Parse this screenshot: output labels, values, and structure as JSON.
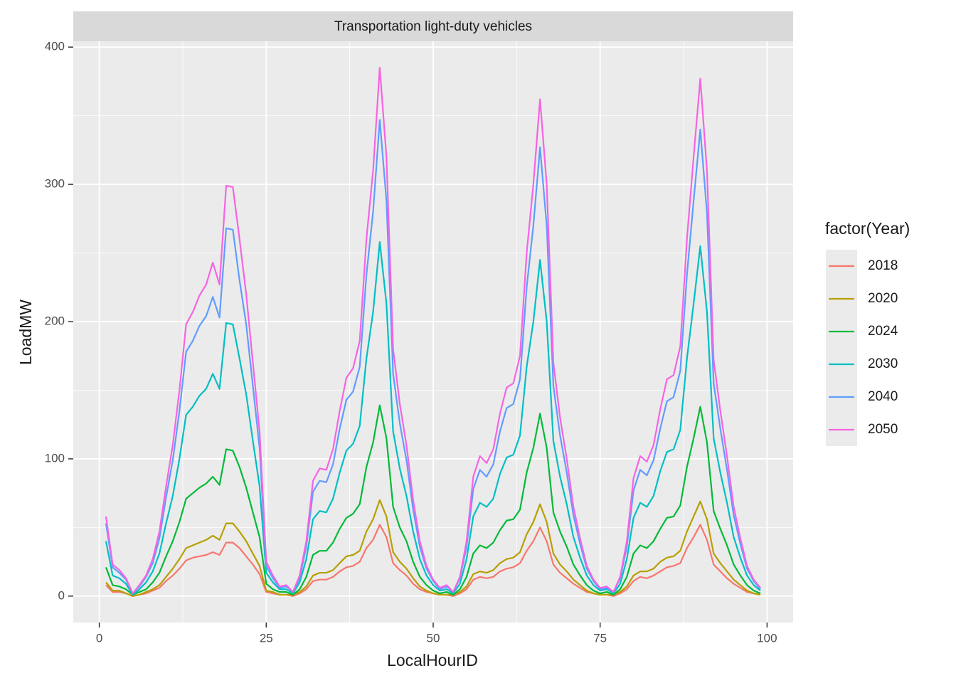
{
  "chart_data": {
    "type": "line",
    "facet_label": "Transportation light-duty vehicles",
    "x_label": "LocalHourID",
    "y_label": "LoadMW",
    "legend_title": "factor(Year)",
    "legend_position": "right",
    "grid": true,
    "xlim": [
      -3.9,
      103.9
    ],
    "ylim": [
      -19.25,
      404.25
    ],
    "xticks": [
      0,
      25,
      50,
      75,
      100
    ],
    "yticks": [
      0,
      100,
      200,
      300,
      400
    ],
    "x": [
      1,
      2,
      3,
      4,
      5,
      6,
      7,
      8,
      9,
      10,
      11,
      12,
      13,
      14,
      15,
      16,
      17,
      18,
      19,
      20,
      21,
      22,
      23,
      24,
      25,
      26,
      27,
      28,
      29,
      30,
      31,
      32,
      33,
      34,
      35,
      36,
      37,
      38,
      39,
      40,
      41,
      42,
      43,
      44,
      45,
      46,
      47,
      48,
      49,
      50,
      51,
      52,
      53,
      54,
      55,
      56,
      57,
      58,
      59,
      60,
      61,
      62,
      63,
      64,
      65,
      66,
      67,
      68,
      69,
      70,
      71,
      72,
      73,
      74,
      75,
      76,
      77,
      78,
      79,
      80,
      81,
      82,
      83,
      84,
      85,
      86,
      87,
      88,
      89,
      90,
      91,
      92,
      93,
      94,
      95,
      96,
      97,
      98,
      99
    ],
    "series": [
      {
        "name": "2018",
        "color": "#F8766D",
        "values": [
          8,
          3,
          3,
          2,
          0,
          1,
          2,
          4,
          6,
          11,
          15,
          20,
          26,
          28,
          29,
          30,
          32,
          30,
          39,
          39,
          35,
          29,
          23,
          16,
          3,
          2,
          1,
          1,
          0,
          2,
          5,
          11,
          12,
          12,
          14,
          18,
          21,
          22,
          25,
          35,
          41,
          52,
          43,
          24,
          19,
          15,
          9,
          5,
          3,
          2,
          1,
          1,
          0,
          2,
          5,
          12,
          14,
          13,
          14,
          18,
          20,
          21,
          24,
          33,
          40,
          50,
          40,
          23,
          17,
          13,
          9,
          6,
          3,
          2,
          1,
          1,
          0,
          2,
          5,
          11,
          14,
          13,
          15,
          18,
          21,
          22,
          24,
          35,
          43,
          52,
          41,
          23,
          18,
          13,
          9,
          6,
          3,
          2,
          1
        ]
      },
      {
        "name": "2020",
        "color": "#B79F00",
        "values": [
          10,
          4,
          4,
          2,
          0,
          1,
          3,
          5,
          8,
          14,
          20,
          27,
          35,
          37,
          39,
          41,
          44,
          41,
          53,
          53,
          47,
          40,
          31,
          22,
          4,
          3,
          1,
          1,
          1,
          3,
          7,
          15,
          17,
          17,
          19,
          24,
          29,
          30,
          33,
          47,
          56,
          70,
          58,
          32,
          25,
          20,
          13,
          7,
          4,
          2,
          1,
          1,
          1,
          3,
          7,
          16,
          18,
          17,
          19,
          24,
          27,
          28,
          32,
          45,
          54,
          67,
          54,
          31,
          23,
          18,
          12,
          8,
          4,
          2,
          1,
          1,
          1,
          3,
          7,
          15,
          18,
          18,
          20,
          25,
          28,
          29,
          33,
          47,
          58,
          69,
          56,
          31,
          24,
          18,
          12,
          8,
          4,
          2,
          1
        ]
      },
      {
        "name": "2024",
        "color": "#00BA38",
        "values": [
          21,
          8,
          7,
          5,
          1,
          3,
          5,
          10,
          17,
          29,
          40,
          54,
          71,
          75,
          79,
          82,
          87,
          81,
          107,
          106,
          94,
          79,
          61,
          43,
          9,
          5,
          3,
          3,
          1,
          5,
          14,
          30,
          33,
          33,
          39,
          49,
          57,
          60,
          67,
          94,
          112,
          139,
          115,
          65,
          50,
          40,
          25,
          14,
          8,
          4,
          2,
          3,
          1,
          5,
          14,
          31,
          37,
          35,
          39,
          48,
          55,
          56,
          63,
          90,
          108,
          133,
          108,
          61,
          47,
          36,
          23,
          15,
          8,
          4,
          2,
          3,
          1,
          5,
          14,
          31,
          37,
          35,
          40,
          49,
          57,
          58,
          66,
          94,
          115,
          138,
          112,
          62,
          49,
          37,
          23,
          15,
          8,
          4,
          2
        ]
      },
      {
        "name": "2030",
        "color": "#00BFC4",
        "values": [
          40,
          15,
          13,
          9,
          1,
          5,
          10,
          18,
          31,
          53,
          73,
          100,
          132,
          138,
          146,
          151,
          162,
          151,
          199,
          198,
          173,
          147,
          113,
          80,
          17,
          10,
          5,
          5,
          2,
          10,
          27,
          56,
          62,
          61,
          71,
          90,
          106,
          111,
          124,
          173,
          207,
          258,
          213,
          120,
          93,
          73,
          47,
          27,
          15,
          8,
          4,
          5,
          2,
          9,
          27,
          58,
          68,
          65,
          71,
          89,
          101,
          103,
          117,
          167,
          200,
          245,
          200,
          113,
          87,
          67,
          43,
          28,
          15,
          8,
          4,
          5,
          2,
          9,
          27,
          57,
          68,
          65,
          73,
          91,
          105,
          107,
          121,
          173,
          213,
          255,
          207,
          115,
          90,
          68,
          43,
          28,
          15,
          8,
          4
        ]
      },
      {
        "name": "2040",
        "color": "#619CFF",
        "values": [
          53,
          21,
          17,
          12,
          2,
          7,
          14,
          24,
          42,
          72,
          99,
          135,
          178,
          186,
          197,
          204,
          218,
          203,
          268,
          267,
          230,
          198,
          153,
          108,
          22,
          13,
          6,
          7,
          3,
          13,
          36,
          76,
          84,
          83,
          96,
          122,
          143,
          149,
          167,
          234,
          280,
          347,
          288,
          162,
          126,
          99,
          63,
          36,
          20,
          11,
          5,
          7,
          3,
          13,
          36,
          78,
          92,
          87,
          96,
          120,
          137,
          140,
          158,
          225,
          270,
          327,
          270,
          153,
          117,
          90,
          59,
          38,
          20,
          11,
          5,
          6,
          3,
          13,
          36,
          77,
          92,
          88,
          99,
          122,
          142,
          145,
          164,
          234,
          288,
          340,
          279,
          155,
          122,
          92,
          59,
          38,
          20,
          11,
          5
        ]
      },
      {
        "name": "2050",
        "color": "#F564E3",
        "values": [
          58,
          23,
          19,
          13,
          2,
          8,
          15,
          27,
          47,
          80,
          110,
          150,
          198,
          207,
          219,
          227,
          243,
          227,
          299,
          298,
          260,
          220,
          170,
          120,
          25,
          15,
          7,
          8,
          3,
          15,
          40,
          84,
          93,
          92,
          107,
          135,
          159,
          166,
          186,
          260,
          310,
          385,
          320,
          180,
          140,
          110,
          70,
          40,
          22,
          12,
          6,
          8,
          3,
          14,
          40,
          87,
          102,
          97,
          107,
          133,
          152,
          155,
          175,
          250,
          300,
          362,
          300,
          170,
          130,
          100,
          65,
          42,
          22,
          12,
          6,
          7,
          3,
          14,
          40,
          86,
          102,
          98,
          110,
          136,
          158,
          161,
          182,
          260,
          320,
          377,
          310,
          172,
          135,
          102,
          65,
          42,
          22,
          12,
          6
        ]
      }
    ]
  }
}
